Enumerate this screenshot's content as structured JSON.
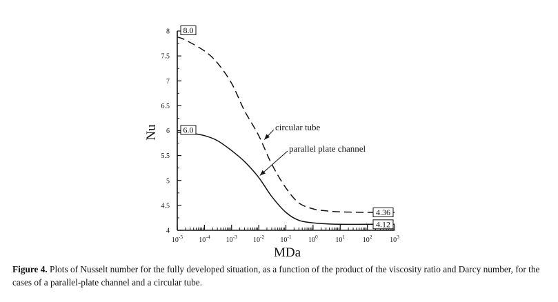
{
  "chart_data": {
    "type": "line",
    "xlabel": "MDa",
    "ylabel": "Nu",
    "xscale": "log",
    "xlim": [
      1e-05,
      1000
    ],
    "ylim": [
      4,
      8
    ],
    "grid": false,
    "x_ticks": [
      {
        "value": 1e-05,
        "base": "10",
        "exp": "-5"
      },
      {
        "value": 0.0001,
        "base": "10",
        "exp": "-4"
      },
      {
        "value": 0.001,
        "base": "10",
        "exp": "-3"
      },
      {
        "value": 0.01,
        "base": "10",
        "exp": "-2"
      },
      {
        "value": 0.1,
        "base": "10",
        "exp": "-1"
      },
      {
        "value": 1,
        "base": "10",
        "exp": "0"
      },
      {
        "value": 10,
        "base": "10",
        "exp": "1"
      },
      {
        "value": 100,
        "base": "10",
        "exp": "2"
      },
      {
        "value": 1000,
        "base": "10",
        "exp": "3"
      }
    ],
    "y_ticks": [
      {
        "value": 4,
        "label": "4"
      },
      {
        "value": 4.5,
        "label": "4.5"
      },
      {
        "value": 5,
        "label": "5"
      },
      {
        "value": 5.5,
        "label": "5.5"
      },
      {
        "value": 6,
        "label": "6"
      },
      {
        "value": 6.5,
        "label": "6.5"
      },
      {
        "value": 7,
        "label": "7"
      },
      {
        "value": 7.5,
        "label": "7.5"
      },
      {
        "value": 8,
        "label": "8"
      }
    ],
    "series": [
      {
        "name": "circular tube",
        "style": "dashed",
        "color": "#111111",
        "x": [
          1e-05,
          2e-05,
          0.0001,
          0.0003,
          0.001,
          0.003,
          0.01,
          0.03,
          0.1,
          0.3,
          1,
          3,
          10,
          100,
          1000
        ],
        "y": [
          7.88,
          7.82,
          7.6,
          7.36,
          6.95,
          6.4,
          5.9,
          5.33,
          4.85,
          4.55,
          4.43,
          4.39,
          4.37,
          4.36,
          4.36
        ]
      },
      {
        "name": "parallel plate channel",
        "style": "solid",
        "color": "#111111",
        "x": [
          1e-05,
          3e-05,
          0.0001,
          0.0003,
          0.001,
          0.003,
          0.01,
          0.03,
          0.1,
          0.3,
          1,
          3,
          10,
          100,
          1000
        ],
        "y": [
          5.97,
          5.95,
          5.9,
          5.8,
          5.6,
          5.38,
          5.06,
          4.68,
          4.36,
          4.2,
          4.15,
          4.13,
          4.12,
          4.12,
          4.12
        ]
      }
    ],
    "annotations": [
      {
        "text": "circular tube",
        "series": 0,
        "point_x": 0.016,
        "point_y": 5.82
      },
      {
        "text": "parallel plate channel",
        "series": 1,
        "point_x": 0.011,
        "point_y": 5.1
      }
    ],
    "value_boxes": [
      {
        "text": "8.0",
        "x": 1e-05,
        "y": 8.0,
        "side": "right"
      },
      {
        "text": "6.0",
        "x": 1e-05,
        "y": 6.0,
        "side": "right"
      },
      {
        "text": "4.36",
        "x": 1000,
        "y": 4.36,
        "side": "left"
      },
      {
        "text": "4.12",
        "x": 1000,
        "y": 4.12,
        "side": "left"
      }
    ]
  },
  "caption": {
    "figure_number": "Figure 4.",
    "text": " Plots of Nusselt number for the fully developed situation, as a function of the product of the viscosity ratio and Darcy number, for the cases of a parallel-plate channel and a circular tube."
  }
}
